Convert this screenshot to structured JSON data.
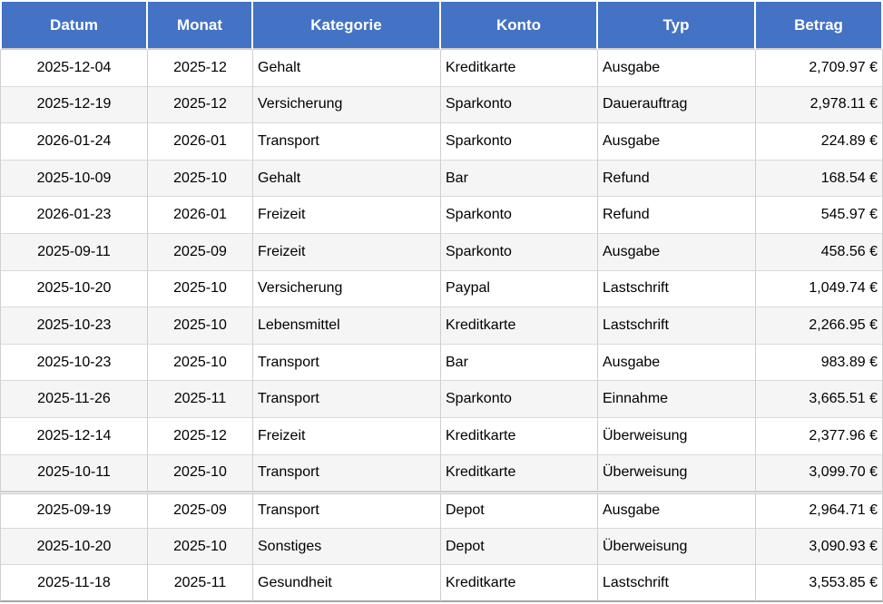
{
  "table": {
    "columns": [
      {
        "id": "datum",
        "label": "Datum"
      },
      {
        "id": "monat",
        "label": "Monat"
      },
      {
        "id": "kategorie",
        "label": "Kategorie"
      },
      {
        "id": "konto",
        "label": "Konto"
      },
      {
        "id": "typ",
        "label": "Typ"
      },
      {
        "id": "betrag",
        "label": "Betrag"
      }
    ],
    "rows": [
      [
        "2025-12-04",
        "2025-12",
        "Gehalt",
        "Kreditkarte",
        "Ausgabe",
        "2,709.97 €"
      ],
      [
        "2025-12-19",
        "2025-12",
        "Versicherung",
        "Sparkonto",
        "Dauerauftrag",
        "2,978.11 €"
      ],
      [
        "2026-01-24",
        "2026-01",
        "Transport",
        "Sparkonto",
        "Ausgabe",
        "224.89 €"
      ],
      [
        "2025-10-09",
        "2025-10",
        "Gehalt",
        "Bar",
        "Refund",
        "168.54 €"
      ],
      [
        "2026-01-23",
        "2026-01",
        "Freizeit",
        "Sparkonto",
        "Refund",
        "545.97 €"
      ],
      [
        "2025-09-11",
        "2025-09",
        "Freizeit",
        "Sparkonto",
        "Ausgabe",
        "458.56 €"
      ],
      [
        "2025-10-20",
        "2025-10",
        "Versicherung",
        "Paypal",
        "Lastschrift",
        "1,049.74 €"
      ],
      [
        "2025-10-23",
        "2025-10",
        "Lebensmittel",
        "Kreditkarte",
        "Lastschrift",
        "2,266.95 €"
      ],
      [
        "2025-10-23",
        "2025-10",
        "Transport",
        "Bar",
        "Ausgabe",
        "983.89 €"
      ],
      [
        "2025-11-26",
        "2025-11",
        "Transport",
        "Sparkonto",
        "Einnahme",
        "3,665.51 €"
      ],
      [
        "2025-12-14",
        "2025-12",
        "Freizeit",
        "Kreditkarte",
        "Überweisung",
        "2,377.96 €"
      ],
      [
        "2025-10-11",
        "2025-10",
        "Transport",
        "Kreditkarte",
        "Überweisung",
        "3,099.70 €"
      ],
      [
        "2025-09-19",
        "2025-09",
        "Transport",
        "Depot",
        "Ausgabe",
        "2,964.71 €"
      ],
      [
        "2025-10-20",
        "2025-10",
        "Sonstiges",
        "Depot",
        "Überweisung",
        "3,090.93 €"
      ],
      [
        "2025-11-18",
        "2025-11",
        "Gesundheit",
        "Kreditkarte",
        "Lastschrift",
        "3,553.85 €"
      ]
    ],
    "heavy_divider_before_row_index": 12
  },
  "colors": {
    "header_bg": "#4472C4",
    "header_text": "#ffffff",
    "row_alt_bg": "#f5f5f5",
    "grid_line": "#d9d9d9",
    "heavy_divider": "#c3c3c3",
    "bottom_border": "#a6a6a6"
  }
}
